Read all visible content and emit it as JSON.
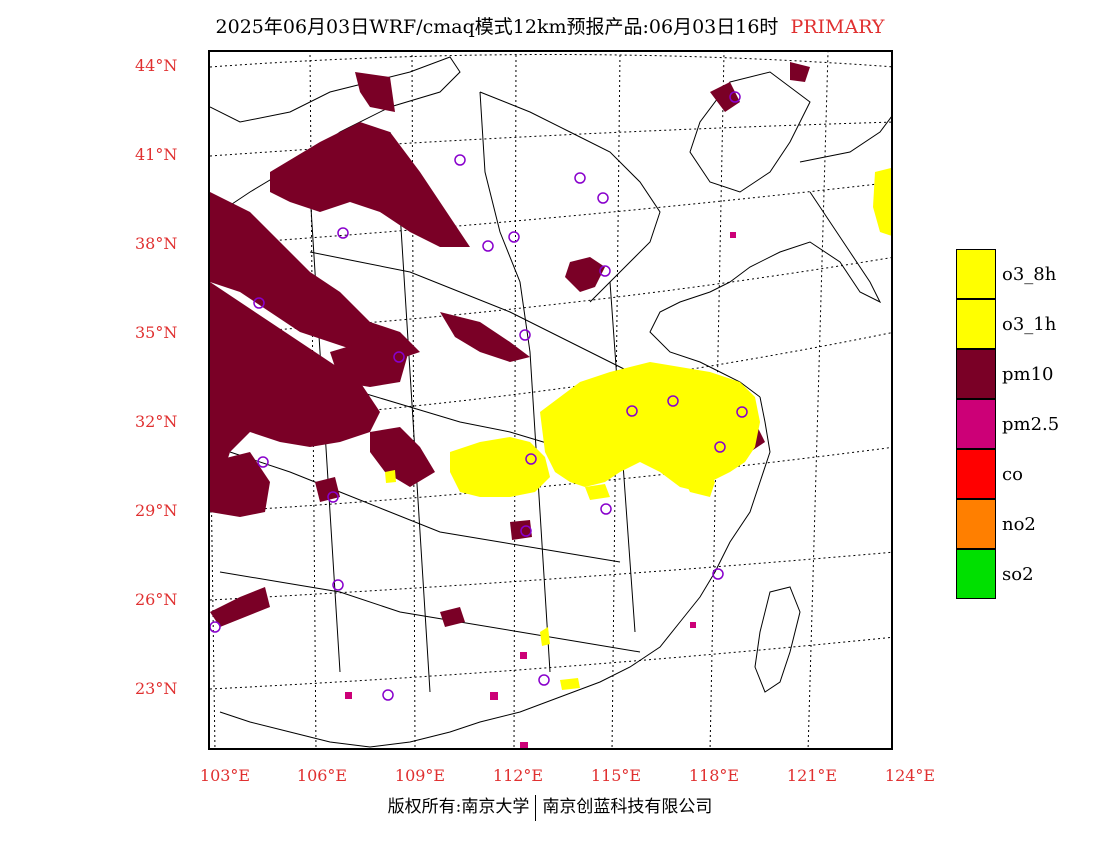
{
  "title": {
    "text": "2025年06月03日WRF/cmaq模式12km预报产品:06月03日16时",
    "tag": "PRIMARY"
  },
  "axes": {
    "lat_labels": [
      "44°N",
      "41°N",
      "38°N",
      "35°N",
      "32°N",
      "29°N",
      "26°N",
      "23°N"
    ],
    "lon_labels": [
      "103°E",
      "106°E",
      "109°E",
      "112°E",
      "115°E",
      "118°E",
      "121°E",
      "124°E"
    ]
  },
  "legend": {
    "items": [
      {
        "label": "o3_8h",
        "color": "#ffff00"
      },
      {
        "label": "o3_1h",
        "color": "#ffff00"
      },
      {
        "label": "pm10",
        "color": "#7a0026"
      },
      {
        "label": "pm2.5",
        "color": "#cc0077"
      },
      {
        "label": "co",
        "color": "#ff0000"
      },
      {
        "label": "no2",
        "color": "#ff7f00"
      },
      {
        "label": "so2",
        "color": "#00e000"
      }
    ]
  },
  "footer": {
    "left": "版权所有:南京大学",
    "right": "南京创蓝科技有限公司"
  },
  "colors": {
    "station_marker": "#8800cc",
    "axis_label": "#e03030"
  }
}
